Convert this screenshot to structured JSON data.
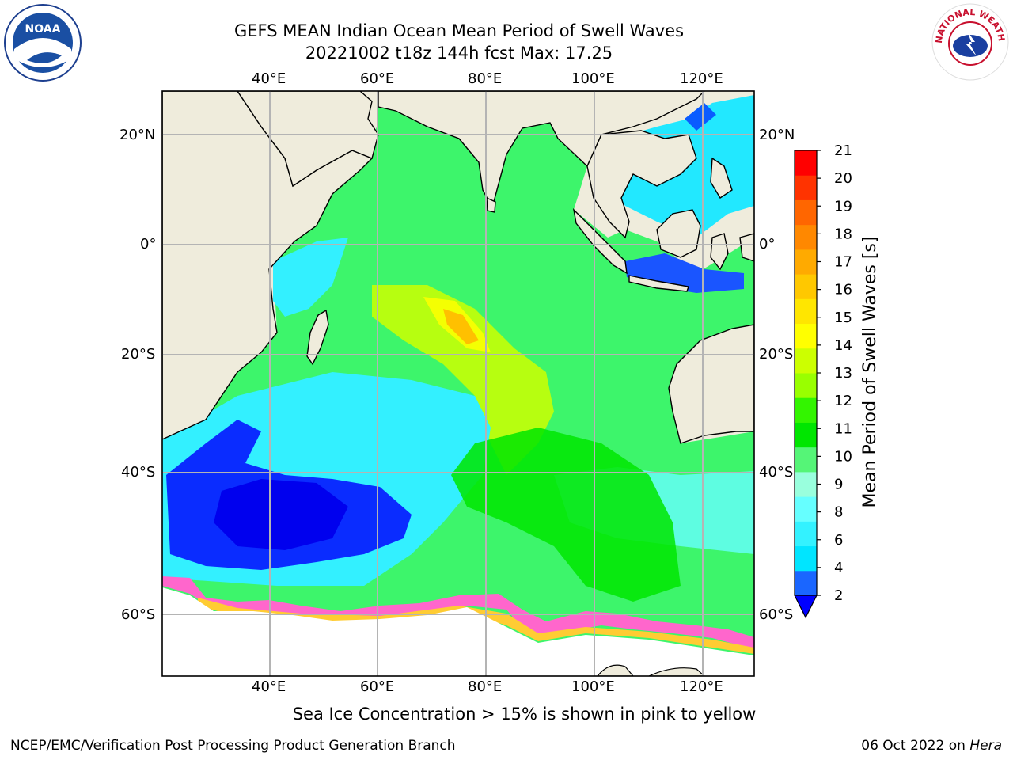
{
  "title": {
    "line1": "GEFS MEAN Indian Ocean Mean Period of Swell Waves",
    "line2": "20221002 t18z 144h fcst   Max: 17.25"
  },
  "map": {
    "lon_labels": [
      "40°E",
      "60°E",
      "80°E",
      "100°E",
      "120°E"
    ],
    "lat_labels": [
      "20°N",
      "0°",
      "20°S",
      "40°S",
      "60°S"
    ],
    "colors": {
      "land": "#efecdc",
      "grid": "#b4b4b4",
      "ice": "#ff66cc"
    }
  },
  "colorbar": {
    "label": "Mean Period of Swell Waves [s]",
    "ticks": [
      "21",
      "20",
      "19",
      "18",
      "17",
      "16",
      "15",
      "14",
      "13",
      "12",
      "11",
      "10",
      "9",
      "8",
      "6",
      "4",
      "2"
    ],
    "colors": [
      "#1a66ff",
      "#00e5ff",
      "#33f2ff",
      "#66ffff",
      "#99ffdd",
      "#55f577",
      "#00e600",
      "#33f500",
      "#99ff00",
      "#ccff00",
      "#ffff00",
      "#ffe600",
      "#ffc800",
      "#ffaa00",
      "#ff8800",
      "#ff6600",
      "#ff3300",
      "#ff0000"
    ],
    "extend_color": "#0000ff"
  },
  "annotation": "Sea Ice Concentration > 15% is shown in pink to yellow",
  "footer": {
    "left": "NCEP/EMC/Verification Post Processing Product Generation Branch",
    "right_prefix": "06 Oct 2022 on ",
    "right_host": "Hera"
  },
  "logos": {
    "noaa_text": "NOAA",
    "nws_text": "NATIONAL WEATHER SERVICE"
  }
}
